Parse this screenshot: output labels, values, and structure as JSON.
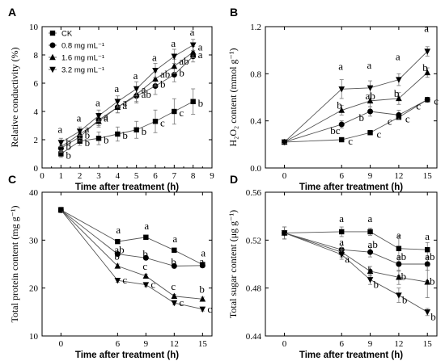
{
  "chart_data": [
    {
      "panel": "A",
      "type": "line",
      "xlabel": "Time after treatment (h)",
      "ylabel": "Relative conductivity (%)",
      "xlim": [
        0,
        9
      ],
      "ylim": [
        0,
        10
      ],
      "xticks": [
        "0",
        "1",
        "2",
        "3",
        "4",
        "5",
        "6",
        "7",
        "8",
        "9"
      ],
      "yticks": [
        "0",
        "2",
        "4",
        "6",
        "8",
        "10"
      ],
      "legend": "top-left",
      "x": [
        1,
        2,
        3,
        4,
        5,
        6,
        7,
        8
      ],
      "series": [
        {
          "name": "CK",
          "marker": "square",
          "values": [
            1.0,
            1.9,
            2.1,
            2.4,
            2.7,
            3.3,
            4.0,
            4.7
          ],
          "errors": [
            0.25,
            0.3,
            0.45,
            0.5,
            0.6,
            0.8,
            0.9,
            0.9
          ],
          "labels": [
            "b",
            "b",
            "b",
            "b",
            "b",
            "c",
            "c",
            "b"
          ]
        },
        {
          "name": "0.8 mg mL⁻¹",
          "marker": "circle",
          "values": [
            1.4,
            2.2,
            3.4,
            4.3,
            5.1,
            5.8,
            6.6,
            7.9
          ],
          "errors": [
            0.3,
            0.3,
            0.4,
            0.4,
            0.5,
            0.6,
            0.5,
            0.4
          ],
          "labels": [
            "b",
            "b",
            "a",
            "a",
            "ab",
            "b",
            "b",
            "a"
          ]
        },
        {
          "name": "1.6 mg mL⁻¹",
          "marker": "triangle-up",
          "values": [
            1.5,
            2.4,
            3.3,
            4.3,
            5.2,
            6.3,
            7.2,
            8.2
          ],
          "errors": [
            0.3,
            0.3,
            0.4,
            0.4,
            0.5,
            0.5,
            0.5,
            0.4
          ],
          "labels": [
            "b",
            "a",
            "a",
            "a",
            "a",
            "ab",
            "ab",
            "a"
          ]
        },
        {
          "name": "3.2 mg mL⁻¹",
          "marker": "triangle-down",
          "values": [
            1.8,
            2.6,
            3.7,
            4.7,
            5.6,
            6.9,
            7.9,
            8.7
          ],
          "errors": [
            0.3,
            0.3,
            0.4,
            0.4,
            0.5,
            0.5,
            0.5,
            0.4
          ],
          "labels": [
            "a",
            "a",
            "a",
            "a",
            "a",
            "a",
            "a",
            "a"
          ]
        }
      ]
    },
    {
      "panel": "B",
      "type": "line",
      "xlabel": "Time after treatment (h)",
      "ylabel": "H₂O₂ content (mmol g⁻¹)",
      "xlim": [
        -2,
        16
      ],
      "ylim": [
        0.0,
        1.2
      ],
      "xticks": [
        "0",
        "6",
        "9",
        "12",
        "15"
      ],
      "yticks": [
        "0.0",
        "0.4",
        "0.8",
        "1.2"
      ],
      "x": [
        0,
        6,
        9,
        12,
        15
      ],
      "series": [
        {
          "name": "CK",
          "marker": "square",
          "values": [
            0.22,
            0.24,
            0.3,
            0.43,
            0.58
          ],
          "errors": [
            0.01,
            0.01,
            0.01,
            0.02,
            0.02
          ],
          "labels": [
            "",
            "c",
            "c",
            "c",
            "c"
          ]
        },
        {
          "name": "0.8 mg mL⁻¹",
          "marker": "circle",
          "values": [
            0.22,
            0.37,
            0.48,
            0.45,
            0.58
          ],
          "errors": [
            0.01,
            0.03,
            0.04,
            0.04,
            0.02
          ],
          "labels": [
            "",
            "bc",
            "b",
            "c",
            "c"
          ]
        },
        {
          "name": "1.6 mg mL⁻¹",
          "marker": "triangle-up",
          "values": [
            0.22,
            0.49,
            0.57,
            0.59,
            0.81
          ],
          "errors": [
            0.01,
            0.04,
            0.05,
            0.05,
            0.04
          ],
          "labels": [
            "",
            "b",
            "ab",
            "b",
            "b"
          ]
        },
        {
          "name": "3.2 mg mL⁻¹",
          "marker": "triangle-down",
          "values": [
            0.22,
            0.67,
            0.68,
            0.75,
            0.99
          ],
          "errors": [
            0.01,
            0.08,
            0.06,
            0.05,
            0.04
          ],
          "labels": [
            "",
            "a",
            "a",
            "a",
            "a"
          ]
        }
      ]
    },
    {
      "panel": "C",
      "type": "line",
      "xlabel": "Time after treatment (h)",
      "ylabel": "Total protein content (mg g⁻¹)",
      "xlim": [
        -2,
        16
      ],
      "ylim": [
        10,
        40
      ],
      "xticks": [
        "0",
        "6",
        "9",
        "12",
        "15"
      ],
      "yticks": [
        "10",
        "20",
        "30",
        "40"
      ],
      "x": [
        0,
        6,
        9,
        12,
        15
      ],
      "series": [
        {
          "name": "CK",
          "marker": "square",
          "values": [
            36.3,
            29.7,
            30.6,
            27.9,
            24.9
          ],
          "errors": [
            0.6,
            0.4,
            0.4,
            0.4,
            0.4
          ],
          "labels": [
            "",
            "a",
            "a",
            "a",
            "a"
          ]
        },
        {
          "name": "0.8 mg mL⁻¹",
          "marker": "circle",
          "values": [
            36.3,
            27.1,
            26.3,
            24.6,
            24.7
          ],
          "errors": [
            0.6,
            0.4,
            0.4,
            0.4,
            0.4
          ],
          "labels": [
            "",
            "ab",
            "b",
            "b",
            "a"
          ]
        },
        {
          "name": "1.6 mg mL⁻¹",
          "marker": "triangle-up",
          "values": [
            36.3,
            24.6,
            22.5,
            18.3,
            17.7
          ],
          "errors": [
            0.6,
            0.4,
            0.4,
            0.4,
            0.4
          ],
          "labels": [
            "",
            "b",
            "c",
            "c",
            "b"
          ]
        },
        {
          "name": "3.2 mg mL⁻¹",
          "marker": "triangle-down",
          "values": [
            36.3,
            21.6,
            20.7,
            16.9,
            15.6
          ],
          "errors": [
            0.6,
            0.4,
            0.4,
            0.4,
            0.4
          ],
          "labels": [
            "",
            "c",
            "c",
            "c",
            "c"
          ]
        }
      ]
    },
    {
      "panel": "D",
      "type": "line",
      "xlabel": "Time after treatment (h)",
      "ylabel": "Total sugar content (μg g⁻¹)",
      "xlim": [
        -2,
        16
      ],
      "ylim": [
        0.44,
        0.56
      ],
      "xticks": [
        "0",
        "6",
        "9",
        "12",
        "15"
      ],
      "yticks": [
        "0.44",
        "0.48",
        "0.52",
        "0.56"
      ],
      "x": [
        0,
        6,
        9,
        12,
        15
      ],
      "series": [
        {
          "name": "CK",
          "marker": "square",
          "values": [
            0.526,
            0.527,
            0.527,
            0.513,
            0.512
          ],
          "errors": [
            0.005,
            0.004,
            0.003,
            0.011,
            0.006
          ],
          "labels": [
            "",
            "a",
            "a",
            "a",
            "a"
          ]
        },
        {
          "name": "0.8 mg mL⁻¹",
          "marker": "circle",
          "values": [
            0.526,
            0.512,
            0.51,
            0.5,
            0.5
          ],
          "errors": [
            0.005,
            0.004,
            0.004,
            0.006,
            0.005
          ],
          "labels": [
            "",
            "a",
            "ab",
            "ab",
            "ab"
          ]
        },
        {
          "name": "1.6 mg mL⁻¹",
          "marker": "triangle-up",
          "values": [
            0.526,
            0.51,
            0.494,
            0.489,
            0.485
          ],
          "errors": [
            0.005,
            0.004,
            0.004,
            0.006,
            0.013
          ],
          "labels": [
            "",
            "a",
            "b",
            "ab",
            "ab"
          ]
        },
        {
          "name": "3.2 mg mL⁻¹",
          "marker": "triangle-down",
          "values": [
            0.526,
            0.508,
            0.487,
            0.474,
            0.46
          ],
          "errors": [
            0.005,
            0.004,
            0.004,
            0.006,
            0.003
          ],
          "labels": [
            "",
            "a",
            "b",
            "b",
            "b"
          ]
        }
      ]
    }
  ]
}
